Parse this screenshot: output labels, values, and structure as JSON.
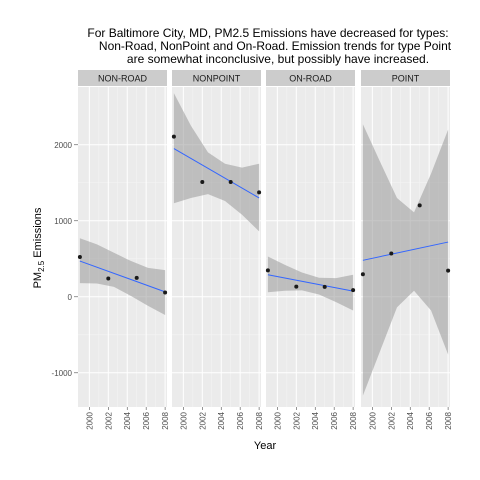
{
  "chart_data": {
    "type": "scatter",
    "title_lines": [
      "For Baltimore City, MD, PM2.5 Emissions have decreased for types:",
      "Non-Road, NonPoint and On-Road.  Emission trends for type Point",
      "are somewhat inconclusive, but possibly have increased."
    ],
    "xlabel": "Year",
    "ylabel": {
      "main": "PM",
      "sub": "2.5",
      "rest": " Emissions"
    },
    "xlim": [
      1998.8,
      2008.2
    ],
    "ylim": [
      -1450,
      2760
    ],
    "x_ticks": [
      "2000",
      "2002",
      "2004",
      "2006",
      "2008"
    ],
    "y_ticks": [
      "-1000",
      "0",
      "1000",
      "2000"
    ],
    "grid": true,
    "colors": {
      "panel": "#ebebeb",
      "strip": "#cccccc",
      "grid_major": "#ffffff",
      "grid_minor": "#f5f5f5",
      "points": "#1a1a1a",
      "trend": "#3366ff",
      "band": "#999999"
    },
    "panels": [
      {
        "label": "NON-ROAD",
        "x": [
          1999,
          2002,
          2005,
          2008
        ],
        "y": [
          522.9,
          240.8,
          248.9,
          55.8
        ],
        "fit": [
          470,
          65
        ],
        "band_top": [
          770,
          690,
          580,
          470,
          380,
          350
        ],
        "band_bottom": [
          180,
          175,
          130,
          10,
          -120,
          -240
        ]
      },
      {
        "label": "NONPOINT",
        "x": [
          1999,
          2002,
          2005,
          2008
        ],
        "y": [
          2107.6,
          1509.5,
          1509.5,
          1373.2
        ],
        "fit": [
          1950,
          1300
        ],
        "band_top": [
          2680,
          2250,
          1900,
          1750,
          1700,
          1750
        ],
        "band_bottom": [
          1230,
          1300,
          1350,
          1260,
          1080,
          860
        ]
      },
      {
        "label": "ON-ROAD",
        "x": [
          1999,
          2002,
          2005,
          2008
        ],
        "y": [
          346.8,
          134.3,
          130.4,
          88.3
        ],
        "fit": [
          290,
          75
        ],
        "band_top": [
          530,
          420,
          320,
          250,
          245,
          290
        ],
        "band_bottom": [
          60,
          80,
          85,
          30,
          -70,
          -180
        ]
      },
      {
        "label": "POINT",
        "x": [
          1999,
          2002,
          2005,
          2008
        ],
        "y": [
          296.8,
          569.3,
          1202.4,
          344.2
        ],
        "fit": [
          480,
          720
        ],
        "band_top": [
          2270,
          1780,
          1300,
          1110,
          1620,
          2200
        ],
        "band_bottom": [
          -1300,
          -720,
          -140,
          80,
          -180,
          -760
        ]
      }
    ]
  }
}
